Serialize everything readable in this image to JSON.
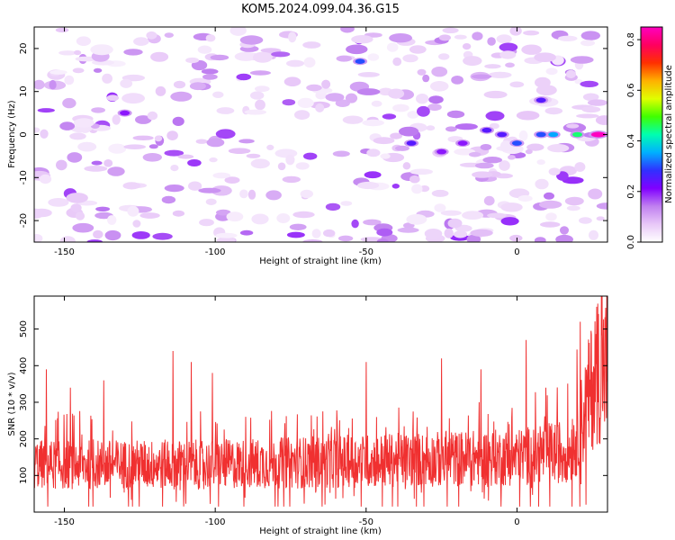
{
  "title": "KOM5.2024.099.04.36.G15",
  "chart_data": [
    {
      "type": "heatmap",
      "xlabel": "Height of straight line (km)",
      "ylabel": "Frequency (Hz)",
      "xlim": [
        -160,
        30
      ],
      "ylim": [
        -25,
        25
      ],
      "x_ticks": [
        -150,
        -100,
        -50,
        0
      ],
      "y_ticks": [
        -20,
        -10,
        0,
        10,
        20
      ],
      "colorbar": {
        "label": "Normalized spectral amplitude",
        "range": [
          0,
          0.85
        ],
        "ticks": [
          0.0,
          0.2,
          0.4,
          0.6,
          0.8
        ],
        "colors": [
          "#ffffff",
          "#e8c8f8",
          "#c080f0",
          "#8000ff",
          "#3030ff",
          "#00b0ff",
          "#00ffb0",
          "#40ff00",
          "#e0ff00",
          "#ffb000",
          "#ff3000",
          "#ff0060",
          "#ff00c0"
        ]
      },
      "features": [
        {
          "x": 27,
          "y": 0,
          "amplitude": 0.85
        },
        {
          "x": 20,
          "y": 0,
          "amplitude": 0.45
        },
        {
          "x": 12,
          "y": 0,
          "amplitude": 0.35
        },
        {
          "x": 8,
          "y": 0,
          "amplitude": 0.3
        },
        {
          "x": 0,
          "y": -2,
          "amplitude": 0.3
        },
        {
          "x": -5,
          "y": 0,
          "amplitude": 0.25
        },
        {
          "x": 8,
          "y": 8,
          "amplitude": 0.25
        },
        {
          "x": -10,
          "y": 1,
          "amplitude": 0.25
        },
        {
          "x": -18,
          "y": -2,
          "amplitude": 0.2
        },
        {
          "x": -25,
          "y": -4,
          "amplitude": 0.2
        },
        {
          "x": -35,
          "y": -2,
          "amplitude": 0.25
        },
        {
          "x": -52,
          "y": 17,
          "amplitude": 0.3
        },
        {
          "x": -130,
          "y": 5,
          "amplitude": 0.2
        }
      ]
    },
    {
      "type": "line",
      "xlabel": "Height of straight line (km)",
      "ylabel": "SNR (10 * v/v)",
      "xlim": [
        -160,
        30
      ],
      "ylim": [
        0,
        590
      ],
      "x_ticks": [
        -150,
        -100,
        -50,
        0
      ],
      "y_ticks": [
        100,
        200,
        300,
        400,
        500
      ],
      "color": "#f03030",
      "baseline_trend": [
        {
          "x": -160,
          "y": 130
        },
        {
          "x": -100,
          "y": 130
        },
        {
          "x": -50,
          "y": 140
        },
        {
          "x": 0,
          "y": 150
        },
        {
          "x": 18,
          "y": 170
        },
        {
          "x": 22,
          "y": 260
        },
        {
          "x": 26,
          "y": 380
        },
        {
          "x": 30,
          "y": 400
        }
      ],
      "peaks": [
        {
          "x": -156,
          "y": 390
        },
        {
          "x": -148,
          "y": 340
        },
        {
          "x": -137,
          "y": 360
        },
        {
          "x": -114,
          "y": 440
        },
        {
          "x": -108,
          "y": 410
        },
        {
          "x": -101,
          "y": 380
        },
        {
          "x": -50,
          "y": 410
        },
        {
          "x": -25,
          "y": 420
        },
        {
          "x": -12,
          "y": 390
        },
        {
          "x": 3,
          "y": 470
        },
        {
          "x": 21,
          "y": 520
        },
        {
          "x": 28,
          "y": 590
        }
      ]
    }
  ]
}
